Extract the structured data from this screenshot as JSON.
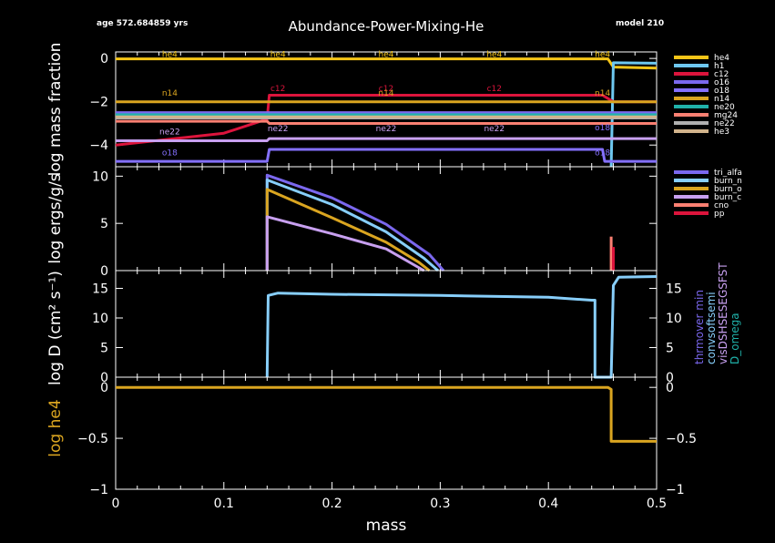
{
  "header": {
    "age": "age 572.684859 yrs",
    "title": "Abundance-Power-Mixing-He",
    "model": "model 210"
  },
  "chart_data": [
    {
      "type": "line",
      "panel": "abundance",
      "ylabel": "log mass fraction",
      "xlim": [
        0,
        0.5
      ],
      "ylim": [
        -5,
        0.3
      ],
      "yticks": [
        "0",
        "−2",
        "−4"
      ],
      "legend": [
        "he4",
        "h1",
        "c12",
        "o16",
        "o18",
        "n14",
        "ne20",
        "mg24",
        "ne22",
        "he3"
      ],
      "colors": {
        "he4": "#f5c518",
        "h1": "#6ec8f0",
        "c12": "#dc143c",
        "o16": "#7b68ee",
        "o18": "#8470ff",
        "n14": "#daa520",
        "ne20": "#20b2aa",
        "mg24": "#fa8072",
        "ne22": "#b0b0b0",
        "he3": "#d2b48c",
        "ne22line": "#c8a0f0"
      },
      "series": [
        {
          "name": "he4",
          "x": [
            0,
            0.455,
            0.46,
            0.5
          ],
          "y": [
            -0.02,
            -0.02,
            -0.4,
            -0.45
          ]
        },
        {
          "name": "h1",
          "x": [
            0.458,
            0.46,
            0.5
          ],
          "y": [
            -5,
            -0.2,
            -0.22
          ]
        },
        {
          "name": "c12",
          "x": [
            0,
            0.1,
            0.14,
            0.142,
            0.45,
            0.46,
            0.5
          ],
          "y": [
            -4.0,
            -3.45,
            -2.8,
            -1.7,
            -1.7,
            -2.0,
            -2.0
          ]
        },
        {
          "name": "o16",
          "x": [
            0,
            0.14,
            0.142,
            0.45,
            0.46,
            0.5
          ],
          "y": [
            -2.5,
            -2.5,
            -2.5,
            -2.5,
            -2.5,
            -2.5
          ]
        },
        {
          "name": "o18",
          "x": [
            0,
            0.14,
            0.142,
            0.45,
            0.452,
            0.5
          ],
          "y": [
            -4.75,
            -4.75,
            -4.2,
            -4.2,
            -4.75,
            -4.75
          ]
        },
        {
          "name": "n14",
          "x": [
            0,
            0.5
          ],
          "y": [
            -2.0,
            -2.0
          ]
        },
        {
          "name": "ne20",
          "x": [
            0,
            0.5
          ],
          "y": [
            -2.6,
            -2.6
          ]
        },
        {
          "name": "mg24",
          "x": [
            0,
            0.14,
            0.142,
            0.5
          ],
          "y": [
            -2.9,
            -2.9,
            -3.0,
            -3.0
          ]
        },
        {
          "name": "ne22",
          "x": [
            0,
            0.14,
            0.142,
            0.5
          ],
          "y": [
            -2.75,
            -2.75,
            -2.75,
            -2.75
          ]
        },
        {
          "name": "he3",
          "x": [
            0,
            0.5
          ],
          "y": [
            -2.7,
            -2.7
          ]
        },
        {
          "name": "ne22line",
          "x": [
            0,
            0.14,
            0.142,
            0.5
          ],
          "y": [
            -3.8,
            -3.8,
            -3.7,
            -3.7
          ]
        }
      ],
      "annotations": [
        {
          "text": "he4",
          "x": 0.05,
          "y": -0.02,
          "c": "#f5c518"
        },
        {
          "text": "he4",
          "x": 0.15,
          "y": -0.02,
          "c": "#f5c518"
        },
        {
          "text": "he4",
          "x": 0.25,
          "y": -0.02,
          "c": "#f5c518"
        },
        {
          "text": "he4",
          "x": 0.35,
          "y": -0.02,
          "c": "#f5c518"
        },
        {
          "text": "he4",
          "x": 0.45,
          "y": -0.02,
          "c": "#f5c518"
        },
        {
          "text": "c12",
          "x": 0.15,
          "y": -1.6,
          "c": "#dc143c"
        },
        {
          "text": "c12",
          "x": 0.25,
          "y": -1.6,
          "c": "#dc143c"
        },
        {
          "text": "c12",
          "x": 0.35,
          "y": -1.6,
          "c": "#dc143c"
        },
        {
          "text": "n14",
          "x": 0.05,
          "y": -1.8,
          "c": "#daa520"
        },
        {
          "text": "n14",
          "x": 0.25,
          "y": -1.8,
          "c": "#daa520"
        },
        {
          "text": "n14",
          "x": 0.45,
          "y": -1.8,
          "c": "#daa520"
        },
        {
          "text": "ne22",
          "x": 0.05,
          "y": -3.6,
          "c": "#c8a0f0"
        },
        {
          "text": "ne22",
          "x": 0.15,
          "y": -3.45,
          "c": "#c8a0f0"
        },
        {
          "text": "ne22",
          "x": 0.25,
          "y": -3.45,
          "c": "#c8a0f0"
        },
        {
          "text": "ne22",
          "x": 0.35,
          "y": -3.45,
          "c": "#c8a0f0"
        },
        {
          "text": "o18",
          "x": 0.05,
          "y": -4.55,
          "c": "#8470ff"
        },
        {
          "text": "o18",
          "x": 0.45,
          "y": -4.55,
          "c": "#8470ff"
        },
        {
          "text": "o18",
          "x": 0.45,
          "y": -3.4,
          "c": "#8470ff"
        }
      ]
    },
    {
      "type": "line",
      "panel": "power",
      "ylabel": "log ergs/g/s",
      "xlim": [
        0,
        0.5
      ],
      "ylim": [
        0,
        11
      ],
      "yticks": [
        "10",
        "5",
        "0"
      ],
      "legend": [
        "tri_alfa",
        "burn_n",
        "burn_o",
        "burn_c",
        "cno",
        "pp"
      ],
      "colors": {
        "tri_alfa": "#7b68ee",
        "burn_n": "#87cefa",
        "burn_o": "#daa520",
        "burn_c": "#c8a0f0",
        "cno": "#fa8072",
        "pp": "#dc143c"
      },
      "series": [
        {
          "name": "tri_alfa",
          "x": [
            0.14,
            0.14,
            0.2,
            0.25,
            0.29,
            0.303
          ],
          "y": [
            0,
            10.1,
            7.7,
            4.9,
            1.7,
            0
          ]
        },
        {
          "name": "burn_n",
          "x": [
            0.14,
            0.14,
            0.2,
            0.25,
            0.285,
            0.298
          ],
          "y": [
            0,
            9.6,
            7.0,
            4.1,
            1.3,
            0
          ]
        },
        {
          "name": "burn_o",
          "x": [
            0.14,
            0.14,
            0.2,
            0.25,
            0.28,
            0.29
          ],
          "y": [
            0,
            8.6,
            5.6,
            3.0,
            0.9,
            0
          ]
        },
        {
          "name": "burn_c",
          "x": [
            0.14,
            0.14,
            0.2,
            0.25,
            0.285
          ],
          "y": [
            0,
            5.7,
            3.9,
            2.3,
            0
          ]
        },
        {
          "name": "cno",
          "x": [
            0.458,
            0.458
          ],
          "y": [
            0,
            3.6
          ]
        },
        {
          "name": "pp",
          "x": [
            0.46,
            0.46
          ],
          "y": [
            0,
            2.5
          ]
        }
      ]
    },
    {
      "type": "line",
      "panel": "mixing",
      "ylabel": "log D (cm² s⁻¹)",
      "xlim": [
        0,
        0.5
      ],
      "ylim": [
        0,
        18
      ],
      "yticks": [
        "15",
        "10",
        "5",
        "0"
      ],
      "right_labels": [
        {
          "text": "thrmover min",
          "c1": "#7b68ee",
          "c2": "#fa8072"
        },
        {
          "text": "convsoftsemi",
          "c1": "#87cefa",
          "c2": "#daa520"
        },
        {
          "text": "visDSHSESEGSFST",
          "c1": "#c8a0f0",
          "c2": "#dc143c"
        },
        {
          "text": "D_omega",
          "c1": "#20b2aa",
          "c2": "#20b2aa"
        }
      ],
      "series": [
        {
          "name": "D",
          "color": "#87cefa",
          "x": [
            0.14,
            0.141,
            0.15,
            0.2,
            0.3,
            0.4,
            0.44,
            0.443,
            0.443,
            0.458,
            0.46,
            0.465,
            0.5
          ],
          "y": [
            0,
            13.8,
            14.2,
            14.0,
            13.8,
            13.5,
            13.0,
            13.0,
            0,
            0,
            15.5,
            16.9,
            17.0
          ]
        }
      ]
    },
    {
      "type": "line",
      "panel": "he",
      "ylabel": "log he4",
      "xlim": [
        0,
        0.5
      ],
      "ylim": [
        -1,
        0.1
      ],
      "xticks": [
        "0",
        "0.1",
        "0.2",
        "0.3",
        "0.4",
        "0.5"
      ],
      "xlabel": "mass",
      "yticks": [
        "0",
        "−0.5",
        "−1"
      ],
      "series": [
        {
          "name": "he4",
          "color": "#daa520",
          "x": [
            0,
            0.455,
            0.458,
            0.458,
            0.5
          ],
          "y": [
            0,
            0,
            -0.02,
            -0.53,
            -0.53
          ]
        }
      ]
    }
  ]
}
